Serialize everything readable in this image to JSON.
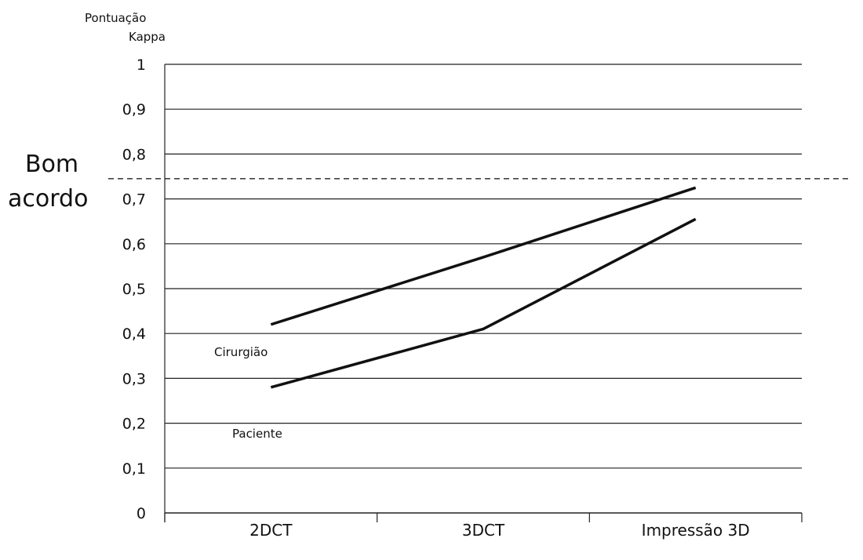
{
  "chart_data": {
    "type": "line",
    "ylabel": "Pontuação Kappa",
    "ylabel_lines": [
      "Pontuação",
      "Kappa"
    ],
    "categories": [
      "2DCT",
      "3DCT",
      "Impressão 3D"
    ],
    "ylim": [
      0,
      1
    ],
    "yticks": [
      0,
      0.1,
      0.2,
      0.3,
      0.4,
      0.5,
      0.6,
      0.7,
      0.8,
      0.9,
      1
    ],
    "ytick_labels": [
      "0",
      "0,1",
      "0,2",
      "0,3",
      "0,4",
      "0,5",
      "0,6",
      "0,7",
      "0,8",
      "0,9",
      "1"
    ],
    "grid": true,
    "reference_line": {
      "value": 0.745,
      "label": "Bom acordo",
      "label_lines": [
        "Bom",
        "acordo"
      ],
      "style": "dashed"
    },
    "series": [
      {
        "name": "Cirurgião",
        "values": [
          0.42,
          0.57,
          0.725
        ],
        "color": "#111111"
      },
      {
        "name": "Paciente",
        "values": [
          0.28,
          0.41,
          0.655
        ],
        "color": "#111111"
      }
    ]
  }
}
